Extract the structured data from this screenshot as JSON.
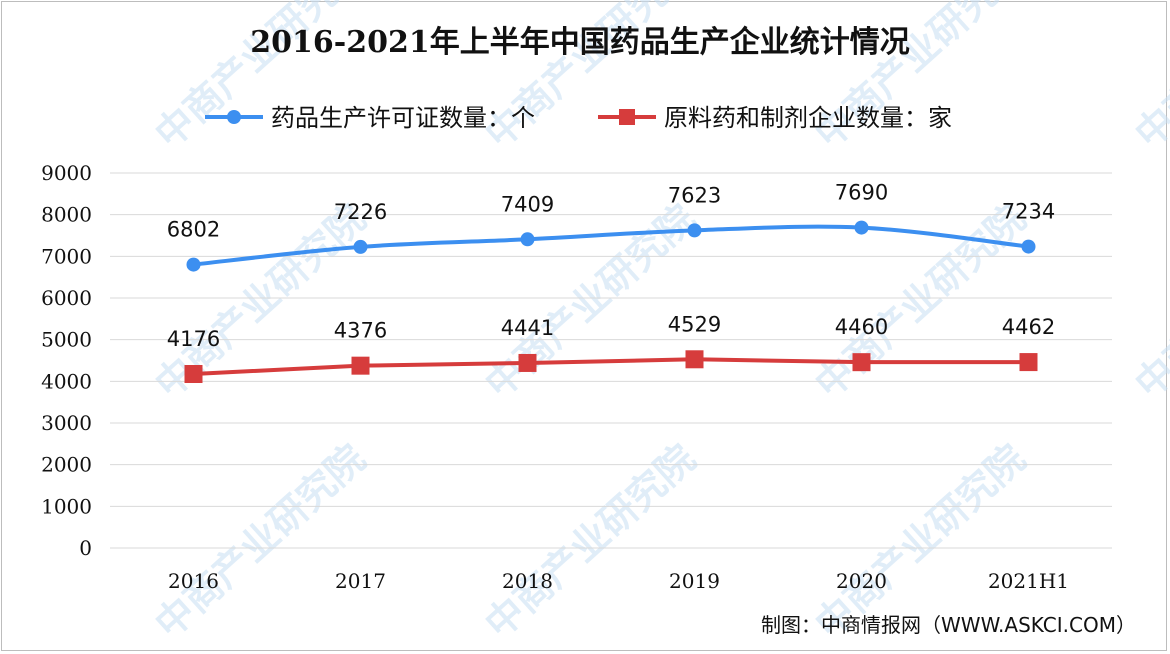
{
  "chart_data": {
    "type": "line",
    "title": "2016-2021年上半年中国药品生产企业统计情况",
    "categories": [
      "2016",
      "2017",
      "2018",
      "2019",
      "2020",
      "2021H1"
    ],
    "ylim": [
      0,
      9000
    ],
    "yticks": [
      "0",
      "1000",
      "2000",
      "3000",
      "4000",
      "5000",
      "6000",
      "7000",
      "8000",
      "9000"
    ],
    "grid": true,
    "legend_position": "top",
    "series": [
      {
        "name": "药品生产许可证数量：个",
        "values": [
          6802,
          7226,
          7409,
          7623,
          7690,
          7234
        ],
        "color": "#3c8ff0",
        "marker": "circle",
        "smooth": true
      },
      {
        "name": "原料药和制剂企业数量：家",
        "values": [
          4176,
          4376,
          4441,
          4529,
          4460,
          4462
        ],
        "color": "#d63c3c",
        "marker": "square",
        "smooth": false
      }
    ]
  },
  "source": "制图：中商情报网（WWW.ASKCI.COM）",
  "watermark": "中商产业研究院"
}
